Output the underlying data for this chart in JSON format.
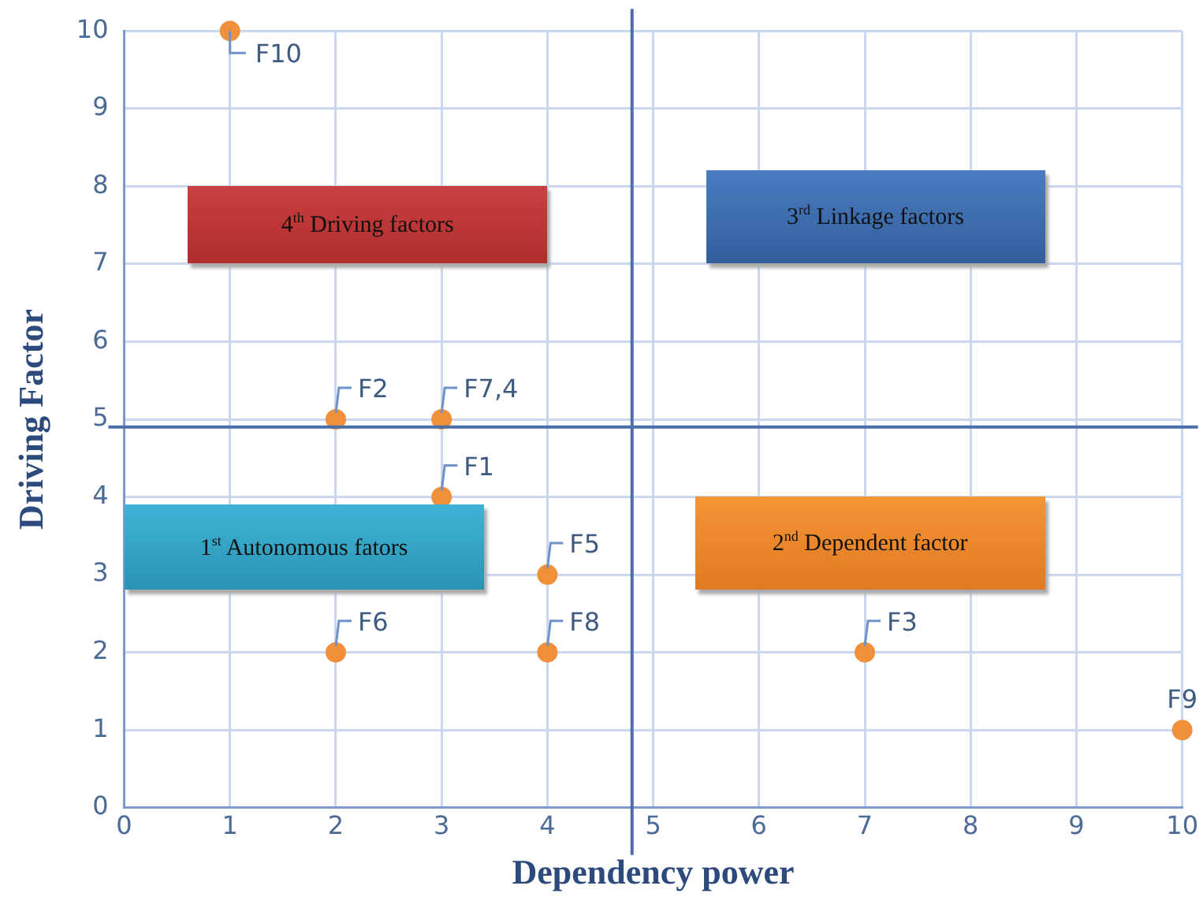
{
  "chart_data": {
    "type": "scatter",
    "xlabel": "Dependency power",
    "ylabel": "Driving Factor",
    "x": [
      1,
      2,
      3,
      3,
      4,
      2,
      4,
      7,
      10
    ],
    "series": [
      {
        "color": "#f0903a",
        "values": [
          10,
          5,
          5,
          4,
          3,
          2,
          2,
          2,
          1
        ]
      }
    ],
    "xlim": [
      0,
      10
    ],
    "ylim": [
      0,
      10
    ],
    "xticks": [
      0,
      1,
      2,
      3,
      4,
      5,
      6,
      7,
      8,
      9,
      10
    ],
    "yticks": [
      0,
      1,
      2,
      3,
      4,
      5,
      6,
      7,
      8,
      9,
      10
    ],
    "grid": true,
    "legend": false,
    "marker": "circle",
    "ref_lines": [
      {
        "axis": "x",
        "value": 4.8,
        "color": "#4a6fa8"
      },
      {
        "axis": "y",
        "value": 4.9,
        "color": "#4a6fa8"
      }
    ],
    "annotations": [
      "4$^{th}$ Driving factors",
      "3$^{rd}$   Linkage factors",
      "1$^{st}$ Autonomous fators",
      "2$^{nd}$ Dependent factor",
      {
        "text": "F10",
        "x": 1,
        "y": 10
      },
      {
        "text": "F2",
        "x": 2,
        "y": 5
      },
      {
        "text": "F7,4",
        "x": 3,
        "y": 5
      },
      {
        "text": "F1",
        "x": 3,
        "y": 4
      },
      {
        "text": "F5",
        "x": 4,
        "y": 3
      },
      {
        "text": "F6",
        "x": 2,
        "y": 2
      },
      {
        "text": "F8",
        "x": 4,
        "y": 2
      },
      {
        "text": "F3",
        "x": 7,
        "y": 2
      },
      {
        "text": "F9",
        "x": 10,
        "y": 1
      }
    ]
  }
}
